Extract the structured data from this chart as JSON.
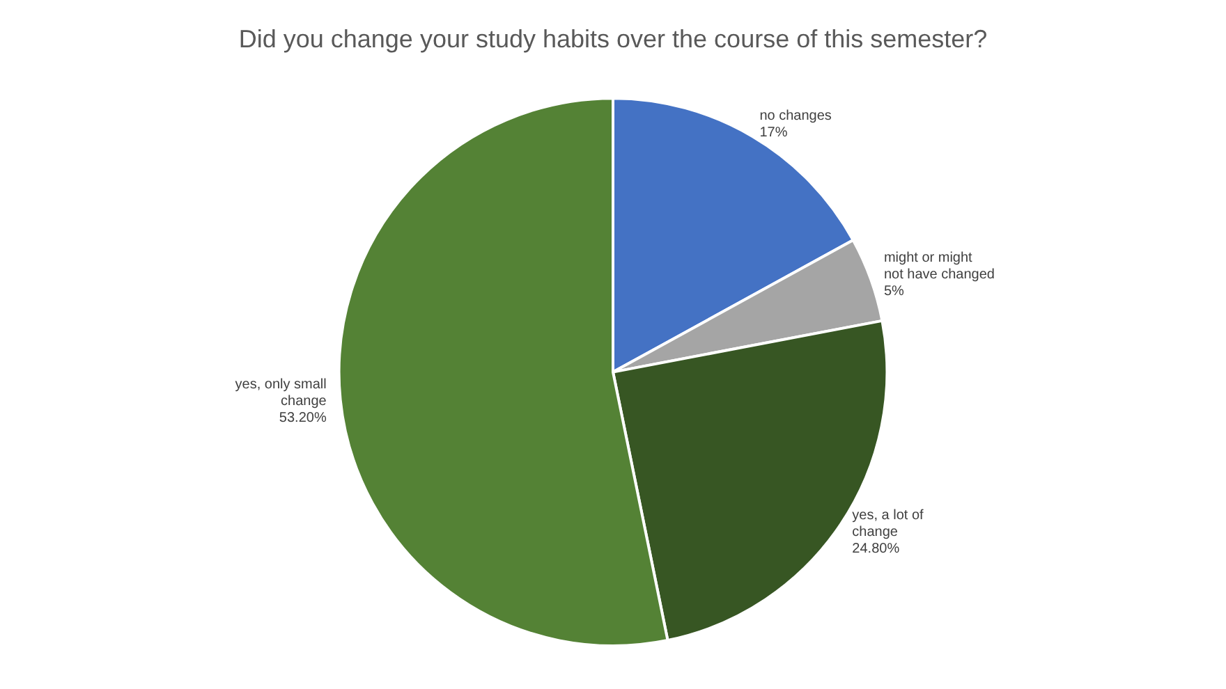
{
  "chart_data": {
    "type": "pie",
    "title": "Did you change your study habits over the course of this semester?",
    "categories": [
      "no changes",
      "might or might not have changed",
      "yes, a lot of change",
      "yes, only small change"
    ],
    "values": [
      17,
      5,
      24.8,
      53.2
    ],
    "value_labels": [
      "17%",
      "5%",
      "24.80%",
      "53.20%"
    ],
    "colors": [
      "#4472c4",
      "#a5a5a5",
      "#375623",
      "#548235"
    ],
    "legend": false
  }
}
